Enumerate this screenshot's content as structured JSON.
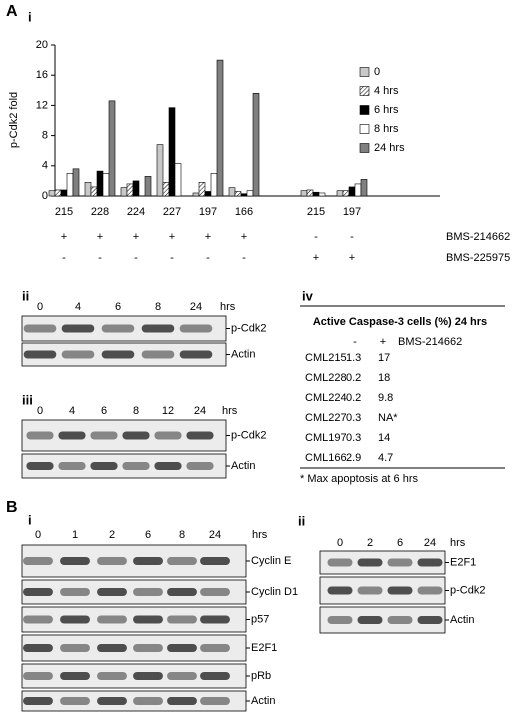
{
  "figure_labels": [
    "A",
    "B"
  ],
  "chart_data": {
    "type": "bar",
    "label": "i",
    "y_label": "p-Cdk2 fold",
    "categories": [
      "215",
      "228",
      "224",
      "227",
      "197",
      "166",
      null,
      "215",
      "197"
    ],
    "series": [
      {
        "name": "0",
        "color": "#c8c8c8",
        "values": [
          0.7,
          1.8,
          1.1,
          6.8,
          0.4,
          1.1,
          null,
          0.7,
          0.7
        ]
      },
      {
        "name": "4 hrs",
        "color": "#ffffff",
        "hatch": true,
        "values": [
          0.8,
          1.2,
          1.6,
          1.8,
          1.8,
          0.6,
          null,
          0.8,
          0.7
        ]
      },
      {
        "name": "6 hrs",
        "color": "#000000",
        "values": [
          0.8,
          3.3,
          2.0,
          11.7,
          0.6,
          0.3,
          null,
          0.5,
          1.2
        ]
      },
      {
        "name": "8 hrs",
        "color": "#ffffff",
        "values": [
          3.0,
          3.0,
          null,
          4.3,
          3.0,
          0.7,
          null,
          0.4,
          1.6
        ]
      },
      {
        "name": "24 hrs",
        "color": "#808080",
        "values": [
          3.6,
          12.6,
          2.6,
          null,
          18.0,
          13.6,
          null,
          null,
          2.2
        ]
      }
    ],
    "ylim": [
      0,
      20
    ],
    "yticks": [
      0,
      4,
      8,
      12,
      16,
      20
    ],
    "treatments": [
      {
        "name": "BMS-214662",
        "marks": [
          "+",
          "+",
          "+",
          "+",
          "+",
          "+",
          null,
          "-",
          "-"
        ]
      },
      {
        "name": "BMS-225975",
        "marks": [
          "-",
          "-",
          "-",
          "-",
          "-",
          "-",
          null,
          "+",
          "+"
        ]
      }
    ]
  },
  "blots": [
    {
      "label": "ii",
      "lanes": [
        "0",
        "4",
        "6",
        "8",
        "24"
      ],
      "unit": "hrs",
      "rows": [
        "p-Cdk2",
        "Actin"
      ]
    },
    {
      "label": "iii",
      "lanes": [
        "0",
        "4",
        "6",
        "8",
        "12",
        "24"
      ],
      "unit": "hrs",
      "rows": [
        "p-Cdk2",
        "Actin"
      ]
    },
    {
      "label": "i",
      "lanes": [
        "0",
        "1",
        "2",
        "6",
        "8",
        "24"
      ],
      "unit": "hrs",
      "rows": [
        "Cyclin E",
        "Cyclin D1",
        "p57",
        "E2F1",
        "pRb",
        "Actin"
      ]
    },
    {
      "label": "ii",
      "lanes": [
        "0",
        "2",
        "6",
        "24"
      ],
      "unit": "hrs",
      "rows": [
        "E2F1",
        "p-Cdk2",
        "Actin"
      ]
    }
  ],
  "table": {
    "label": "iv",
    "title": "Active Caspase-3 cells (%) 24 hrs",
    "header": [
      "-",
      "+",
      "BMS-214662"
    ],
    "rows": [
      [
        "CML215",
        1.3,
        17
      ],
      [
        "CML228",
        0.2,
        18
      ],
      [
        "CML224",
        0.2,
        9.8
      ],
      [
        "CML227",
        0.3,
        "NA*"
      ],
      [
        "CML197",
        0.3,
        14
      ],
      [
        "CML166",
        2.9,
        4.7
      ]
    ],
    "footnote": "* Max apoptosis at 6 hrs"
  }
}
